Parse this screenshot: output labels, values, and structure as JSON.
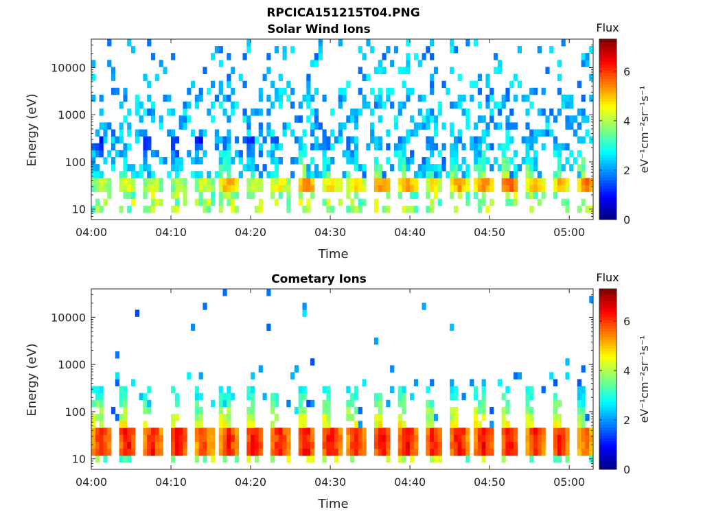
{
  "figure": {
    "title": "RPCICA151215T04.PNG"
  },
  "chart_data": [
    {
      "type": "heatmap",
      "title": "Solar Wind Ions",
      "xlabel": "Time",
      "ylabel": "Energy (eV)",
      "yscale": "log",
      "ylim": [
        6,
        40000
      ],
      "xlim": [
        "04:00",
        "05:03"
      ],
      "x_ticks": [
        "04:00",
        "04:10",
        "04:20",
        "04:30",
        "04:40",
        "04:50",
        "05:00"
      ],
      "y_ticks": [
        10,
        100,
        1000,
        10000
      ],
      "y_tick_labels": [
        "10",
        "100",
        "1000",
        "10000"
      ],
      "colorbar": {
        "title": "Flux",
        "label": "eV⁻¹cm⁻²sr⁻¹s⁻¹",
        "range": [
          0,
          7.3
        ],
        "ticks": [
          "0",
          "2",
          "4",
          "6"
        ],
        "colormap": "jet"
      },
      "pulse_period_min": 3.2,
      "pulse_starts_min": [
        0.2,
        3.4,
        6.6,
        9.8,
        13.0,
        16.2,
        19.4,
        22.6,
        25.8,
        29.0,
        32.2,
        35.4,
        38.6,
        41.8,
        45.0,
        48.2,
        51.4,
        54.6,
        57.8,
        61.0
      ],
      "core_energy_band_eV": [
        25,
        45
      ],
      "core_peak_flux": [
        4.5,
        4.8,
        4.6,
        4.4,
        4.6,
        5.6,
        4.6,
        5.0,
        6.0,
        5.2,
        5.0,
        5.8,
        5.6,
        5.0,
        5.6,
        5.8,
        6.2,
        5.6,
        5.4,
        6.0
      ],
      "background_flux_high_energy": 1.6,
      "grid": false
    },
    {
      "type": "heatmap",
      "title": "Cometary Ions",
      "xlabel": "Time",
      "ylabel": "Energy (eV)",
      "yscale": "log",
      "ylim": [
        6,
        40000
      ],
      "xlim": [
        "04:00",
        "05:03"
      ],
      "x_ticks": [
        "04:00",
        "04:10",
        "04:20",
        "04:30",
        "04:40",
        "04:50",
        "05:00"
      ],
      "y_ticks": [
        10,
        100,
        1000,
        10000
      ],
      "y_tick_labels": [
        "10",
        "100",
        "1000",
        "10000"
      ],
      "colorbar": {
        "title": "Flux",
        "label": "eV⁻¹cm⁻²sr⁻¹s⁻¹",
        "range": [
          0,
          7.3
        ],
        "ticks": [
          "0",
          "2",
          "4",
          "6"
        ],
        "colormap": "jet"
      },
      "pulse_period_min": 3.2,
      "pulse_starts_min": [
        0.2,
        3.4,
        6.6,
        9.8,
        13.0,
        16.2,
        19.4,
        22.6,
        25.8,
        29.0,
        32.2,
        35.4,
        38.6,
        41.8,
        45.0,
        48.2,
        51.4,
        54.6,
        57.8,
        61.0
      ],
      "core_energy_band_eV": [
        14,
        45
      ],
      "core_peak_flux": [
        6.6,
        6.8,
        6.6,
        6.8,
        6.4,
        6.6,
        6.8,
        6.6,
        6.8,
        6.8,
        6.6,
        6.8,
        6.8,
        6.6,
        6.8,
        6.8,
        6.8,
        6.6,
        6.6,
        6.0
      ],
      "background_flux_high_energy": 1.4,
      "grid": false
    }
  ]
}
